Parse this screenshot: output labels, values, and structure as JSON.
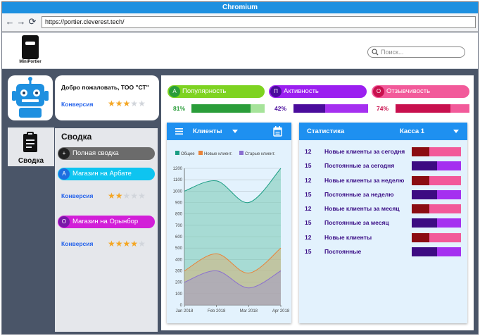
{
  "browser": {
    "title": "Chromium",
    "url": "https://portier.cleverest.tech/"
  },
  "header": {
    "logo_text": "MiniPortier",
    "search_placeholder": "Поиск..."
  },
  "welcome": {
    "text": "Добро пожаловать, ТОО \"СТ\"",
    "conversion_label": "Конверсия",
    "rating": 3
  },
  "sidebar_tab": {
    "label": "Сводка"
  },
  "summary": {
    "title": "Сводка",
    "items": [
      {
        "badge": "+",
        "label": "Полная сводка"
      },
      {
        "badge": "А",
        "label": "Магазин на Арбате",
        "conversion_label": "Конверсия",
        "rating": 2
      },
      {
        "badge": "О",
        "label": "Магазин на Орынбор",
        "conversion_label": "Конверсия",
        "rating": 4
      }
    ]
  },
  "metrics": [
    {
      "badge": "А",
      "label": "Популярность",
      "percent": "81%",
      "value": 0.81,
      "color": "#7ed321",
      "dark": "#2a9d3a",
      "light": "#a6e39a"
    },
    {
      "badge": "П",
      "label": "Активность",
      "percent": "42%",
      "value": 0.42,
      "color": "#9b1ff0",
      "dark": "#4a0c9c",
      "light": "#a530f0"
    },
    {
      "badge": "О",
      "label": "Отзывчивость",
      "percent": "74%",
      "value": 0.74,
      "color": "#f25a9a",
      "dark": "#c8104e",
      "light": "#f25a9a"
    }
  ],
  "clients_card": {
    "title": "Клиенты",
    "legend": [
      "Общее",
      "Новые клиент.",
      "Старые клиент."
    ],
    "colors": [
      "#1a9d83",
      "#e8833a",
      "#8a6fd0"
    ]
  },
  "chart_data": {
    "type": "area",
    "x": [
      "Jan 2018",
      "Feb 2018",
      "Mar 2018",
      "Apr 2018"
    ],
    "series": [
      {
        "name": "Общее",
        "values": [
          1000,
          1090,
          900,
          1200
        ]
      },
      {
        "name": "Новые клиент.",
        "values": [
          300,
          450,
          280,
          500
        ]
      },
      {
        "name": "Старые клиент.",
        "values": [
          200,
          300,
          150,
          300
        ]
      }
    ],
    "y_ticks": [
      0,
      100,
      200,
      300,
      400,
      500,
      600,
      700,
      800,
      900,
      1000,
      1100,
      1200
    ],
    "ylim": [
      0,
      1200
    ],
    "grid": true,
    "legend_position": "top"
  },
  "stats_card": {
    "title": "Статистика",
    "selector": "Касса 1",
    "rows": [
      {
        "num": "12",
        "label": "Новые клиенты за сегодня",
        "kind": "new",
        "value": 0.35
      },
      {
        "num": "15",
        "label": "Постоянные за сегодня",
        "kind": "regular",
        "value": 0.52
      },
      {
        "num": "12",
        "label": "Новые клиенты за неделю",
        "kind": "new",
        "value": 0.35
      },
      {
        "num": "15",
        "label": "Постоянные за неделю",
        "kind": "regular",
        "value": 0.52
      },
      {
        "num": "12",
        "label": "Новые клиенты за месяц",
        "kind": "new",
        "value": 0.35
      },
      {
        "num": "15",
        "label": "Постоянные за месяц",
        "kind": "regular",
        "value": 0.52
      },
      {
        "num": "12",
        "label": "Новые клиенты",
        "kind": "new",
        "value": 0.35
      },
      {
        "num": "15",
        "label": "Постоянные",
        "kind": "regular",
        "value": 0.52
      }
    ]
  },
  "colors": {
    "new_dark": "#8b0c12",
    "new_light": "#f25a9a",
    "regular_dark": "#3d0b82",
    "regular_light": "#a530f0"
  }
}
